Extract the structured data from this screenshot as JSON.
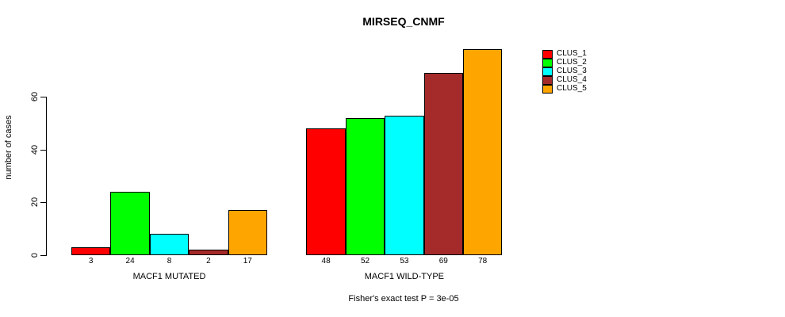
{
  "chart_data": {
    "type": "bar",
    "title": "MIRSEQ_CNMF",
    "xlabel": "",
    "ylabel": "number of cases",
    "ylim": [
      0,
      80
    ],
    "yticks": [
      0,
      20,
      40,
      60
    ],
    "grid": false,
    "categories": [
      "MACF1 MUTATED",
      "MACF1 WILD-TYPE"
    ],
    "series": [
      {
        "name": "CLUS_1",
        "color": "#FF0000",
        "values": [
          3,
          48
        ]
      },
      {
        "name": "CLUS_2",
        "color": "#00FF00",
        "values": [
          24,
          52
        ]
      },
      {
        "name": "CLUS_3",
        "color": "#00FFFF",
        "values": [
          8,
          53
        ]
      },
      {
        "name": "CLUS_4",
        "color": "#A52A2A",
        "values": [
          2,
          69
        ]
      },
      {
        "name": "CLUS_5",
        "color": "#FFA500",
        "values": [
          17,
          78
        ]
      }
    ],
    "bar_value_labels": [
      [
        3,
        24,
        8,
        2,
        17
      ],
      [
        48,
        52,
        53,
        69,
        78
      ]
    ],
    "legend": {
      "position": "right",
      "entries": [
        "CLUS_1",
        "CLUS_2",
        "CLUS_3",
        "CLUS_4",
        "CLUS_5"
      ]
    },
    "annotation": "Fisher's exact test P = 3e-05"
  },
  "colors": {
    "background": "#FFFFFF",
    "axis": "#000000",
    "text": "#000000",
    "bar_border": "#000000"
  }
}
